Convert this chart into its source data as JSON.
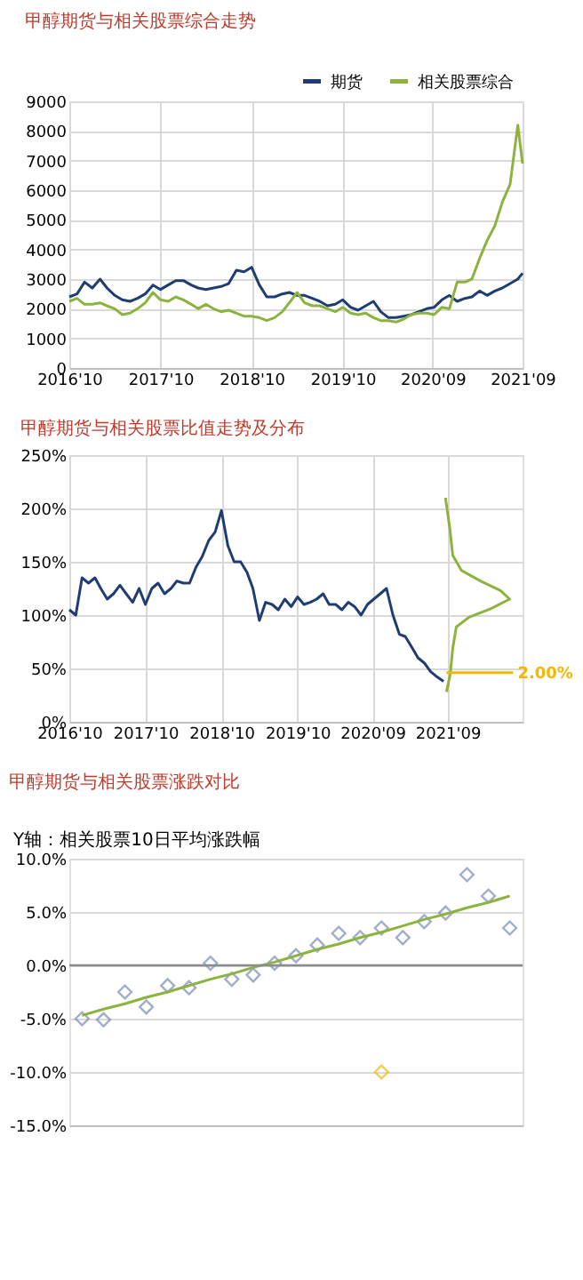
{
  "chart_data": [
    {
      "type": "line",
      "title": "甲醇期货与相关股票综合走势",
      "x": [
        "2016-10",
        "2016-11",
        "2016-12",
        "2017-01",
        "2017-02",
        "2017-03",
        "2017-04",
        "2017-05",
        "2017-06",
        "2017-07",
        "2017-08",
        "2017-09",
        "2017-10",
        "2017-11",
        "2017-12",
        "2018-01",
        "2018-02",
        "2018-03",
        "2018-04",
        "2018-05",
        "2018-06",
        "2018-07",
        "2018-08",
        "2018-09",
        "2018-10",
        "2018-11",
        "2018-12",
        "2019-01",
        "2019-02",
        "2019-03",
        "2019-04",
        "2019-05",
        "2019-06",
        "2019-07",
        "2019-08",
        "2019-09",
        "2019-10",
        "2019-11",
        "2019-12",
        "2020-01",
        "2020-02",
        "2020-03",
        "2020-04",
        "2020-05",
        "2020-06",
        "2020-07",
        "2020-08",
        "2020-09",
        "2020-10",
        "2020-11",
        "2020-12",
        "2021-01",
        "2021-02",
        "2021-03",
        "2021-04",
        "2021-05",
        "2021-06",
        "2021-07",
        "2021-08",
        "2021-09",
        "2021-09-20"
      ],
      "series": [
        {
          "name": "期货",
          "color": "#1f3d73",
          "values": [
            2400,
            2500,
            2900,
            2700,
            3000,
            2700,
            2450,
            2300,
            2250,
            2350,
            2500,
            2800,
            2650,
            2800,
            2950,
            2950,
            2800,
            2700,
            2650,
            2700,
            2750,
            2850,
            3300,
            3250,
            3400,
            2800,
            2400,
            2400,
            2500,
            2550,
            2450,
            2450,
            2350,
            2250,
            2100,
            2150,
            2300,
            2050,
            1950,
            2100,
            2250,
            1900,
            1700,
            1700,
            1750,
            1800,
            1900,
            2000,
            2050,
            2300,
            2450,
            2250,
            2350,
            2400,
            2600,
            2450,
            2600,
            2700,
            2850,
            3000,
            3200
          ]
        },
        {
          "name": "相关股票综合",
          "color": "#8db33f",
          "values": [
            2250,
            2350,
            2150,
            2150,
            2200,
            2100,
            2000,
            1800,
            1850,
            2000,
            2200,
            2550,
            2300,
            2250,
            2400,
            2300,
            2150,
            2000,
            2150,
            2000,
            1900,
            1950,
            1850,
            1750,
            1750,
            1700,
            1600,
            1700,
            1900,
            2200,
            2550,
            2200,
            2100,
            2100,
            2000,
            1900,
            2050,
            1850,
            1800,
            1850,
            1700,
            1600,
            1600,
            1550,
            1650,
            1800,
            1850,
            1850,
            1800,
            2050,
            2000,
            2900,
            2900,
            3000,
            3700,
            4300,
            4800,
            5600,
            6200,
            8200,
            6900
          ]
        }
      ],
      "xlim": [
        "2016-10-01",
        "2021-09-20"
      ],
      "xticks": [
        {
          "value": "2016-10-01",
          "label": "2016'10"
        },
        {
          "value": "2017-10-01",
          "label": "2017'10"
        },
        {
          "value": "2018-10-01",
          "label": "2018'10"
        },
        {
          "value": "2019-10-01",
          "label": "2019'10"
        },
        {
          "value": "2020-09-25",
          "label": "2020'09"
        },
        {
          "value": "2021-09-20",
          "label": "2021'09"
        }
      ],
      "ylim": [
        0,
        9000
      ],
      "yticks": [
        0,
        1000,
        2000,
        3000,
        4000,
        5000,
        6000,
        7000,
        8000,
        9000
      ],
      "grid": true,
      "legend": "top right",
      "line_style": "solid",
      "marker": "none"
    },
    {
      "type": "line",
      "title": "甲醇期货与相关股票比值走势及分布",
      "x": [
        "2016-10",
        "2016-11",
        "2016-12",
        "2017-01",
        "2017-02",
        "2017-03",
        "2017-04",
        "2017-05",
        "2017-06",
        "2017-07",
        "2017-08",
        "2017-09",
        "2017-10",
        "2017-11",
        "2017-12",
        "2018-01",
        "2018-02",
        "2018-03",
        "2018-04",
        "2018-05",
        "2018-06",
        "2018-07",
        "2018-08",
        "2018-09",
        "2018-10",
        "2018-11",
        "2018-12",
        "2019-01",
        "2019-02",
        "2019-03",
        "2019-04",
        "2019-05",
        "2019-06",
        "2019-07",
        "2019-08",
        "2019-09",
        "2019-10",
        "2019-11",
        "2019-12",
        "2020-01",
        "2020-02",
        "2020-03",
        "2020-04",
        "2020-05",
        "2020-06",
        "2020-07",
        "2020-08",
        "2020-09",
        "2020-10",
        "2020-11",
        "2020-12",
        "2021-01",
        "2021-02",
        "2021-03",
        "2021-04",
        "2021-05",
        "2021-06",
        "2021-07",
        "2021-08",
        "2021-09"
      ],
      "series": [
        {
          "color": "#1f3d73",
          "values": [
            105,
            100,
            135,
            130,
            135,
            125,
            115,
            120,
            128,
            120,
            112,
            125,
            110,
            125,
            130,
            120,
            125,
            132,
            130,
            130,
            145,
            155,
            170,
            178,
            198,
            165,
            150,
            150,
            140,
            125,
            95,
            112,
            110,
            105,
            115,
            108,
            117,
            110,
            112,
            115,
            120,
            110,
            110,
            105,
            112,
            108,
            100,
            110,
            115,
            120,
            125,
            100,
            82,
            80,
            70,
            60,
            55,
            47,
            42,
            38
          ]
        },
        {
          "color": "#8db33f",
          "x": [
            "2021-09-15",
            "2021-10-03",
            "2021-10-15",
            "2021-11-01",
            "2022-01-01",
            "2022-04-15",
            "2022-07-15",
            "2022-06-01",
            "2022-02-25",
            "2021-11-25",
            "2021-10-15",
            "2021-10-01",
            "2021-09-10"
          ],
          "values": [
            28,
            45,
            69,
            89,
            98,
            106,
            115,
            123,
            132,
            142,
            156,
            181,
            210
          ]
        },
        {
          "color": "#f5b800",
          "x": [
            "2021-09-15",
            "2022-08-01"
          ],
          "values": [
            46,
            46
          ]
        }
      ],
      "xlim": [
        "2016-10-01",
        "2022-09-15"
      ],
      "xticks": [
        {
          "value": "2016-10-01",
          "label": "2016'10"
        },
        {
          "value": "2017-10-01",
          "label": "2017'10"
        },
        {
          "value": "2018-10-01",
          "label": "2018'10"
        },
        {
          "value": "2019-10-01",
          "label": "2019'10"
        },
        {
          "value": "2020-09-25",
          "label": "2020'09"
        },
        {
          "value": "2021-09-20",
          "label": "2021'09"
        }
      ],
      "ylim": [
        0,
        250
      ],
      "yticks": [
        {
          "value": 0,
          "label": "0%"
        },
        {
          "value": 50,
          "label": "50%"
        },
        {
          "value": 100,
          "label": "100%"
        },
        {
          "value": 150,
          "label": "150%"
        },
        {
          "value": 200,
          "label": "200%"
        },
        {
          "value": 250,
          "label": "250%"
        }
      ],
      "annotations": [
        {
          "text": "2.00%",
          "x": "2022-08-05",
          "y": 46
        }
      ],
      "grid": true,
      "line_style": "solid",
      "marker": "none"
    },
    {
      "type": "scatter",
      "title": "甲醇期货与相关股票涨跌对比",
      "ylabel": "Y轴：相关股票10日平均涨跌幅",
      "categories": [
        null,
        null,
        null,
        null,
        null,
        null,
        null,
        null,
        null,
        null,
        null,
        null,
        null,
        null,
        null,
        null,
        null,
        null,
        null,
        null,
        null
      ],
      "series": [
        {
          "color": "#7b8ab8",
          "values": [
            -5.0,
            -5.1,
            -2.5,
            -3.9,
            -1.9,
            -2.1,
            0.2,
            -1.3,
            -0.9,
            0.2,
            0.9,
            1.9,
            3.0,
            2.6,
            3.5,
            2.6,
            4.1,
            4.9,
            8.5,
            6.5,
            3.5
          ]
        },
        {
          "color": "#f5b800",
          "values": [
            null,
            null,
            null,
            null,
            null,
            null,
            null,
            null,
            null,
            null,
            null,
            null,
            null,
            null,
            -10.0,
            null,
            null,
            null,
            null,
            null,
            null
          ]
        },
        {
          "type": "line",
          "marker": "none",
          "color": "#8db33f",
          "values": [
            -4.7,
            -4.1,
            -3.6,
            -3.0,
            -2.5,
            -1.9,
            -1.3,
            -0.8,
            -0.2,
            0.3,
            0.9,
            1.5,
            2.0,
            2.6,
            3.1,
            3.7,
            4.3,
            4.8,
            5.4,
            5.9,
            6.5
          ]
        }
      ],
      "ylim": [
        -15,
        10
      ],
      "yticks": [
        {
          "value": -15,
          "label": "-15.0%"
        },
        {
          "value": -10,
          "label": "-10.0%"
        },
        {
          "value": -5,
          "label": "-5.0%"
        },
        {
          "value": 0,
          "label": "0.0%"
        },
        {
          "value": 5,
          "label": "5.0%"
        },
        {
          "value": 10,
          "label": "10.0%"
        }
      ],
      "ref_lines": [
        {
          "axis": "y",
          "value": 0,
          "color": "#8c8c8c"
        }
      ],
      "tick_labels": "y",
      "grid": "y",
      "marker": "diamond"
    }
  ]
}
